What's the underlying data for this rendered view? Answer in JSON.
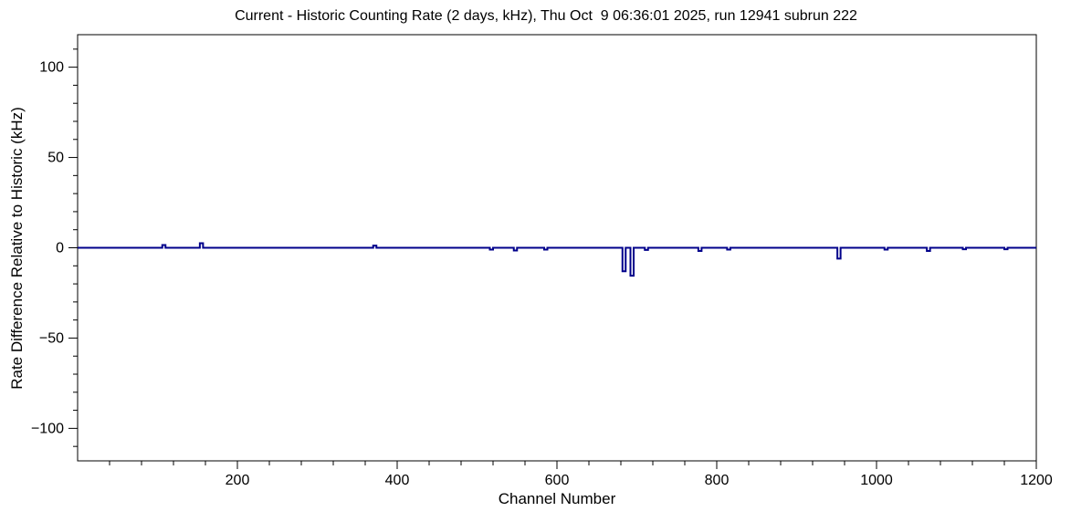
{
  "chart_data": {
    "type": "line",
    "title": "Current - Historic Counting Rate (2 days, kHz), Thu Oct  9 06:36:01 2025, run 12941 subrun 222",
    "xlabel": "Channel Number",
    "ylabel": "Rate Difference Relative to Historic (kHz)",
    "xlim": [
      0,
      1200
    ],
    "ylim": [
      -118,
      118
    ],
    "xticks": [
      200,
      400,
      600,
      800,
      1000,
      1200
    ],
    "yticks": [
      -100,
      -50,
      0,
      50,
      100
    ],
    "x_minor_step": 40,
    "y_minor_step": 10,
    "grid": false,
    "legend": null,
    "line_color": "#00008b",
    "axis_color": "#000000",
    "baseline": 0,
    "bin_width": 4,
    "spikes": [
      {
        "x": 108,
        "y": 1.5
      },
      {
        "x": 155,
        "y": 2.5
      },
      {
        "x": 372,
        "y": 1.2
      },
      {
        "x": 518,
        "y": -1.0
      },
      {
        "x": 548,
        "y": -1.5
      },
      {
        "x": 586,
        "y": -1.0
      },
      {
        "x": 684,
        "y": -13.0
      },
      {
        "x": 694,
        "y": -15.5
      },
      {
        "x": 712,
        "y": -1.2
      },
      {
        "x": 779,
        "y": -1.8
      },
      {
        "x": 815,
        "y": -1.0
      },
      {
        "x": 953,
        "y": -6.0
      },
      {
        "x": 1012,
        "y": -1.0
      },
      {
        "x": 1065,
        "y": -1.8
      },
      {
        "x": 1110,
        "y": -0.8
      },
      {
        "x": 1162,
        "y": -0.8
      }
    ]
  }
}
